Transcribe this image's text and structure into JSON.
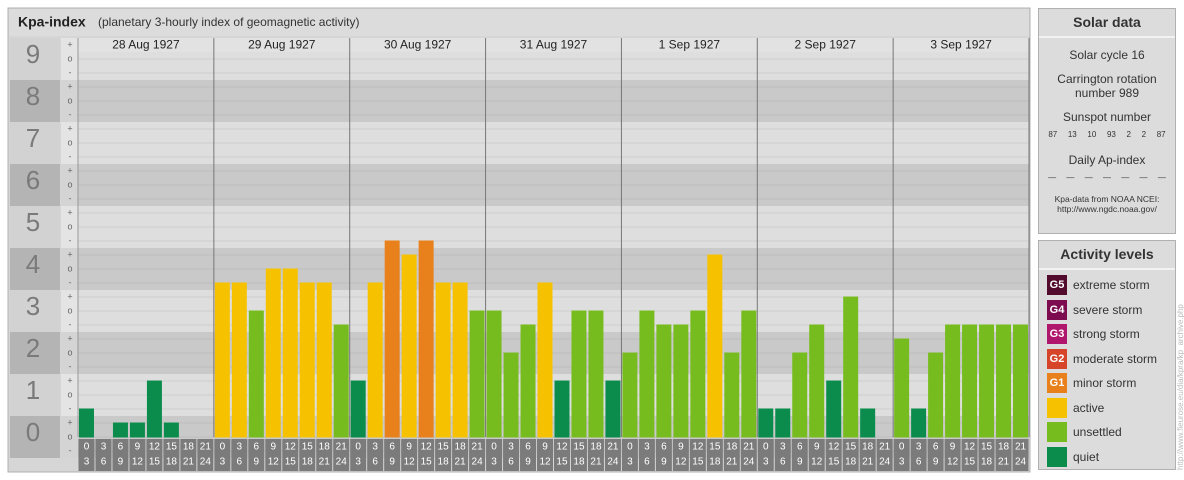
{
  "chart_data": {
    "type": "bar",
    "title": "Kpa-index",
    "subtitle": "(planetary 3-hourly index of geomagnetic activity)",
    "days": [
      "28 Aug 1927",
      "29 Aug 1927",
      "30 Aug 1927",
      "31 Aug 1927",
      "1 Sep 1927",
      "2 Sep 1927",
      "3 Sep 1927"
    ],
    "hours": [
      0,
      3,
      6,
      9,
      12,
      15,
      18,
      21,
      24
    ],
    "sublevels": [
      "+",
      "o",
      "-"
    ],
    "ylim": [
      -0.5,
      9.5
    ],
    "yticks": [
      0,
      1,
      2,
      3,
      4,
      5,
      6,
      7,
      8,
      9
    ],
    "values": [
      0.667,
      0,
      0.333,
      0.333,
      1.333,
      0.333,
      0,
      0,
      3.667,
      3.667,
      3,
      4,
      4,
      3.667,
      3.667,
      2.667,
      1.333,
      3.667,
      4.667,
      4.333,
      4.667,
      3.667,
      3.667,
      3,
      3,
      2,
      2.667,
      3.667,
      1.333,
      3,
      3,
      1.333,
      2,
      3,
      2.667,
      2.667,
      3,
      4.333,
      2,
      3,
      0.667,
      0.667,
      2,
      2.667,
      1.333,
      3.333,
      0.667,
      0,
      2.333,
      0.667,
      2,
      2.667,
      2.667,
      2.667,
      2.667,
      2.667
    ],
    "colors": [
      "#0b8c4c",
      "#0b8c4c",
      "#0b8c4c",
      "#0b8c4c",
      "#0b8c4c",
      "#0b8c4c",
      "#0b8c4c",
      "#0b8c4c",
      "#f6c200",
      "#f6c200",
      "#77bc1f",
      "#f6c200",
      "#f6c200",
      "#f6c200",
      "#f6c200",
      "#77bc1f",
      "#0b8c4c",
      "#f6c200",
      "#e8801c",
      "#f6c200",
      "#e8801c",
      "#f6c200",
      "#f6c200",
      "#77bc1f",
      "#77bc1f",
      "#77bc1f",
      "#77bc1f",
      "#f6c200",
      "#0b8c4c",
      "#77bc1f",
      "#77bc1f",
      "#0b8c4c",
      "#77bc1f",
      "#77bc1f",
      "#77bc1f",
      "#77bc1f",
      "#77bc1f",
      "#f6c200",
      "#77bc1f",
      "#77bc1f",
      "#0b8c4c",
      "#0b8c4c",
      "#77bc1f",
      "#77bc1f",
      "#0b8c4c",
      "#77bc1f",
      "#0b8c4c",
      "#0b8c4c",
      "#77bc1f",
      "#0b8c4c",
      "#77bc1f",
      "#77bc1f",
      "#77bc1f",
      "#77bc1f",
      "#77bc1f",
      "#77bc1f"
    ]
  },
  "solar_data": {
    "title": "Solar data",
    "cycle": "Solar cycle 16",
    "carrington": "Carrington rotation number 989",
    "sunspot_title": "Sunspot number",
    "sunspot": [
      87,
      13,
      10,
      93,
      2,
      2,
      87
    ],
    "ap_title": "Daily Ap-index",
    "ap": [
      "—",
      "—",
      "—",
      "—",
      "—",
      "—",
      "—"
    ],
    "source": "Kpa-data from NOAA NCEI:",
    "source_url": "http://www.ngdc.noaa.gov/"
  },
  "activity_levels": {
    "title": "Activity levels",
    "levels": [
      {
        "code": "G5",
        "name": "extreme storm",
        "color": "#520a2d"
      },
      {
        "code": "G4",
        "name": "severe storm",
        "color": "#7c0c4f"
      },
      {
        "code": "G3",
        "name": "strong storm",
        "color": "#b0166b"
      },
      {
        "code": "G2",
        "name": "moderate storm",
        "color": "#d6452a"
      },
      {
        "code": "G1",
        "name": "minor storm",
        "color": "#e8801c"
      },
      {
        "code": "",
        "name": "active",
        "color": "#f6c200"
      },
      {
        "code": "",
        "name": "unsettled",
        "color": "#77bc1f"
      },
      {
        "code": "",
        "name": "quiet",
        "color": "#0b8c4c"
      }
    ]
  },
  "side_url": "http://www.fieurose.eu/dia/kpra/kp_archive.php"
}
